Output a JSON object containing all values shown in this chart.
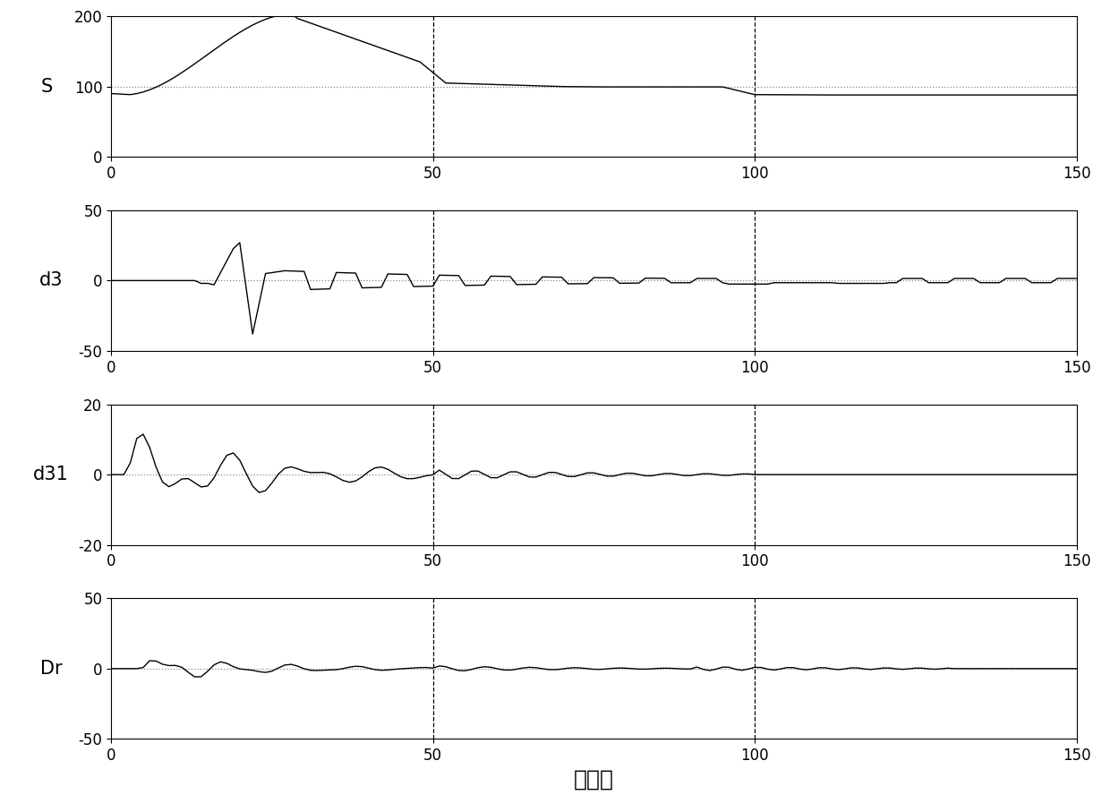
{
  "title": "",
  "xlabel": "采样点",
  "subplots": [
    {
      "ylabel": "S",
      "ylim": [
        0,
        200
      ],
      "yticks": [
        0,
        100,
        200
      ],
      "hline": 100,
      "hline_style": "dotted"
    },
    {
      "ylabel": "d3",
      "ylim": [
        -50,
        50
      ],
      "yticks": [
        -50,
        0,
        50
      ],
      "hline": 0,
      "hline_style": "dotted"
    },
    {
      "ylabel": "d31",
      "ylim": [
        -20,
        20
      ],
      "yticks": [
        -20,
        0,
        20
      ],
      "hline": 0,
      "hline_style": "dotted"
    },
    {
      "ylabel": "Dr",
      "ylim": [
        -50,
        50
      ],
      "yticks": [
        -50,
        0,
        50
      ],
      "hline": 0,
      "hline_style": "dotted"
    }
  ],
  "xlim": [
    0,
    150
  ],
  "xticks": [
    0,
    50,
    100,
    150
  ],
  "vlines": [
    50,
    100
  ],
  "line_color": "#000000",
  "hline_color": "#888888",
  "vline_color": "#000000",
  "background_color": "#ffffff",
  "figsize": [
    12.4,
    9.07
  ],
  "dpi": 100
}
